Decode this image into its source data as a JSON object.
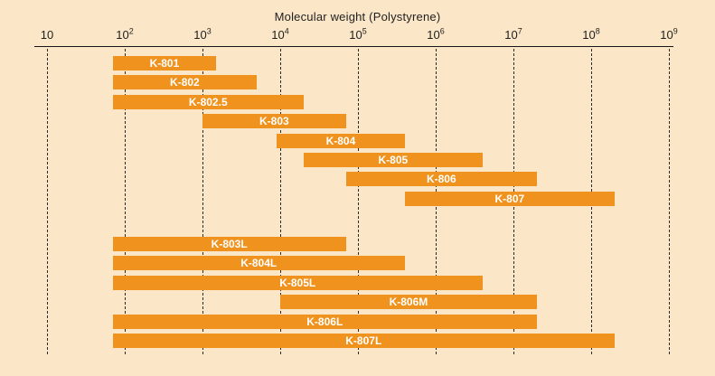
{
  "colors": {
    "background": "#FBE7C8",
    "bar": "#F0921E",
    "bar_label": "#FFFFFF",
    "axis": "#151515"
  },
  "chart_data": {
    "type": "bar",
    "subtype": "horizontal-log-range",
    "title": "Molecular weight (Polystyrene)",
    "xlabel": "Molecular weight (Polystyrene)",
    "x_scale": "log10",
    "x_min": 10,
    "x_max": 1000000000,
    "grid": "dashed-vertical-per-decade",
    "legend": "none",
    "ticks": [
      {
        "base": "10",
        "exp": ""
      },
      {
        "base": "10",
        "exp": "2"
      },
      {
        "base": "10",
        "exp": "3"
      },
      {
        "base": "10",
        "exp": "4"
      },
      {
        "base": "10",
        "exp": "5"
      },
      {
        "base": "10",
        "exp": "6"
      },
      {
        "base": "10",
        "exp": "7"
      },
      {
        "base": "10",
        "exp": "8"
      },
      {
        "base": "10",
        "exp": "9"
      }
    ],
    "bars": [
      {
        "label": "K-801",
        "mw_min": 70,
        "mw_max": 1500,
        "group": 0
      },
      {
        "label": "K-802",
        "mw_min": 70,
        "mw_max": 5000,
        "group": 0
      },
      {
        "label": "K-802.5",
        "mw_min": 70,
        "mw_max": 20000,
        "group": 0
      },
      {
        "label": "K-803",
        "mw_min": 1000,
        "mw_max": 70000,
        "group": 0
      },
      {
        "label": "K-804",
        "mw_min": 9000,
        "mw_max": 400000,
        "group": 0
      },
      {
        "label": "K-805",
        "mw_min": 20000,
        "mw_max": 4000000,
        "group": 0
      },
      {
        "label": "K-806",
        "mw_min": 70000,
        "mw_max": 20000000,
        "group": 0
      },
      {
        "label": "K-807",
        "mw_min": 400000,
        "mw_max": 200000000,
        "group": 0
      },
      {
        "label": "K-803L",
        "mw_min": 70,
        "mw_max": 70000,
        "group": 1
      },
      {
        "label": "K-804L",
        "mw_min": 70,
        "mw_max": 400000,
        "group": 1
      },
      {
        "label": "K-805L",
        "mw_min": 70,
        "mw_max": 4000000,
        "group": 1
      },
      {
        "label": "K-806M",
        "mw_min": 10000,
        "mw_max": 20000000,
        "group": 1
      },
      {
        "label": "K-806L",
        "mw_min": 70,
        "mw_max": 20000000,
        "group": 1
      },
      {
        "label": "K-807L",
        "mw_min": 70,
        "mw_max": 200000000,
        "group": 1
      }
    ]
  }
}
